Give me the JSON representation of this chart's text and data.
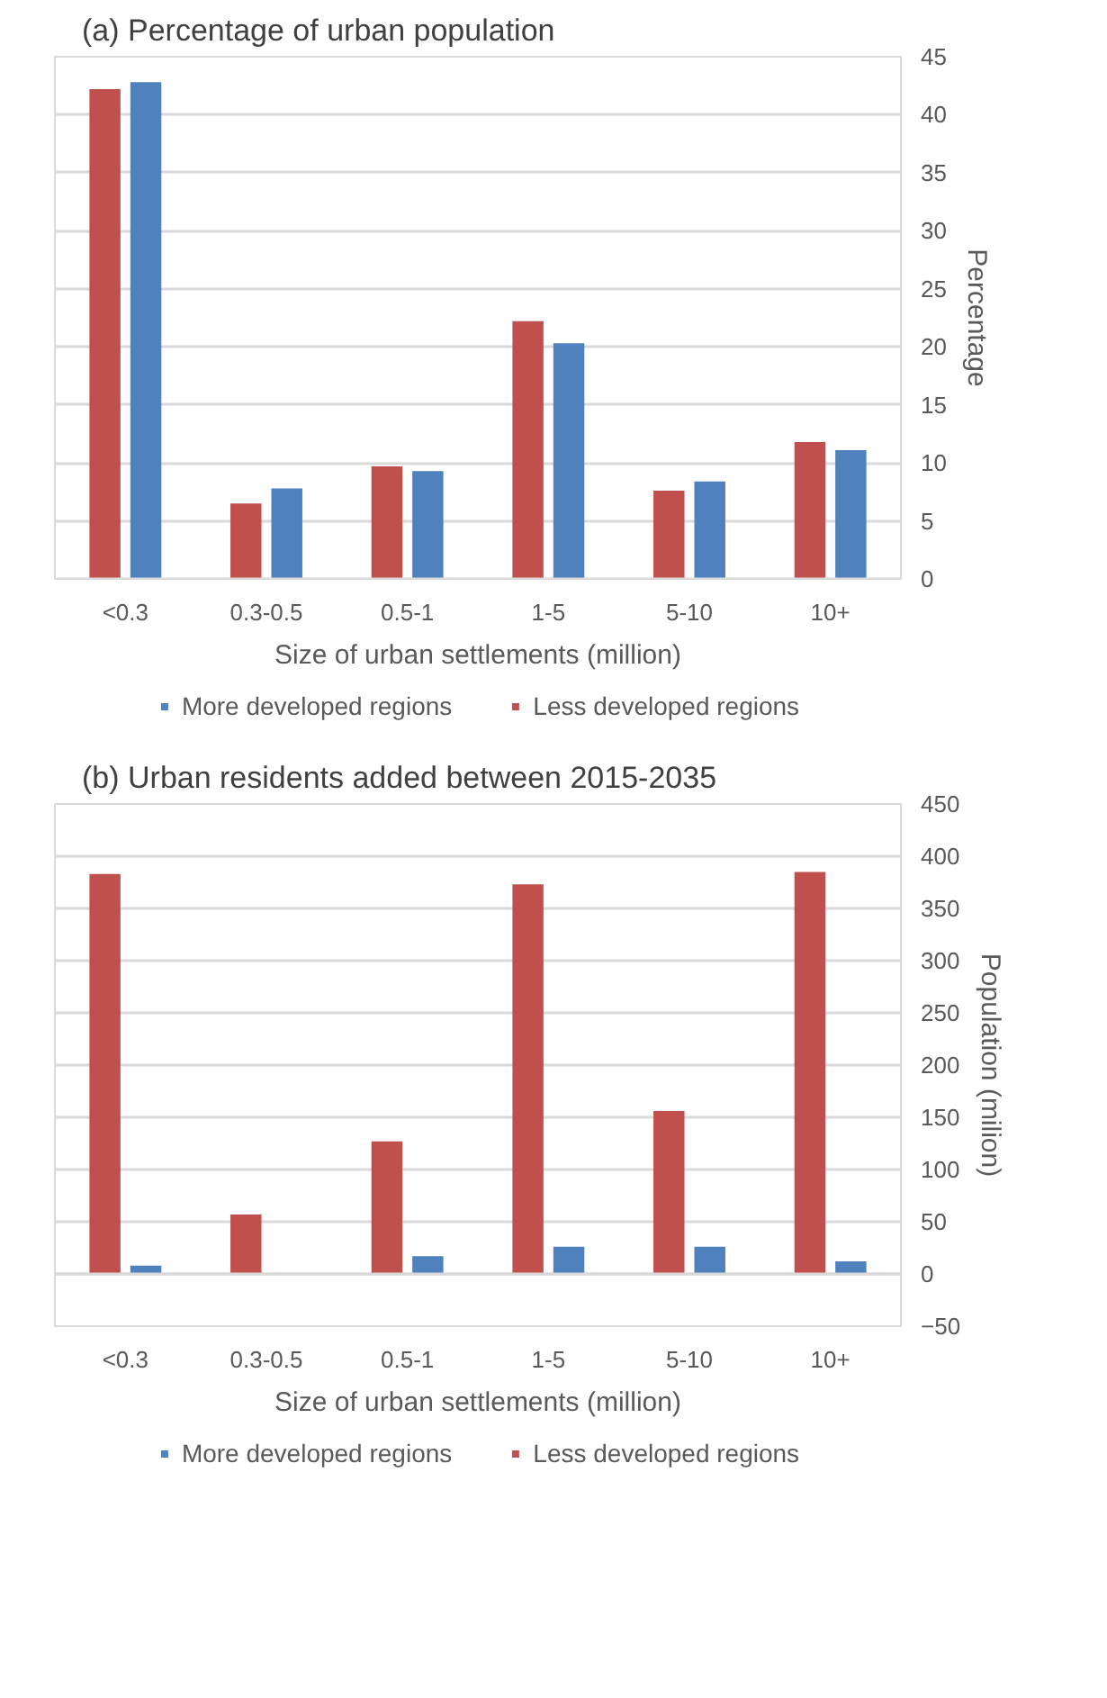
{
  "chart_data": [
    {
      "type": "bar",
      "title": "(a) Percentage of urban population",
      "xlabel": "Size of urban settlements (million)",
      "ylabel": "Percentage",
      "categories": [
        "<0.3",
        "0.3-0.5",
        "0.5-1",
        "1-5",
        "5-10",
        "10+"
      ],
      "series": [
        {
          "name": "Less developed regions",
          "color": "#c0504d",
          "values": [
            42.2,
            6.5,
            9.7,
            22.2,
            7.6,
            11.8
          ]
        },
        {
          "name": "More developed regions",
          "color": "#4f81bd",
          "values": [
            42.8,
            7.8,
            9.3,
            20.3,
            8.4,
            11.1
          ]
        }
      ],
      "ylim": [
        0,
        45
      ],
      "yticks": [
        0,
        5,
        10,
        15,
        20,
        25,
        30,
        35,
        40,
        45
      ],
      "grid": "y",
      "legend": "bottom"
    },
    {
      "type": "bar",
      "title": "(b) Urban residents added between 2015-2035",
      "xlabel": "Size of urban settlements (million)",
      "ylabel": "Population (milion)",
      "categories": [
        "<0.3",
        "0.3-0.5",
        "0.5-1",
        "1-5",
        "5-10",
        "10+"
      ],
      "series": [
        {
          "name": "Less developed regions",
          "color": "#c0504d",
          "values": [
            383,
            57,
            127,
            373,
            156,
            385
          ]
        },
        {
          "name": "More developed regions",
          "color": "#4f81bd",
          "values": [
            8,
            0,
            17,
            26,
            26,
            12
          ]
        }
      ],
      "ylim": [
        -50,
        450
      ],
      "yticks": [
        -50,
        0,
        50,
        100,
        150,
        200,
        250,
        300,
        350,
        400,
        450
      ],
      "grid": "y",
      "legend": "bottom"
    }
  ]
}
